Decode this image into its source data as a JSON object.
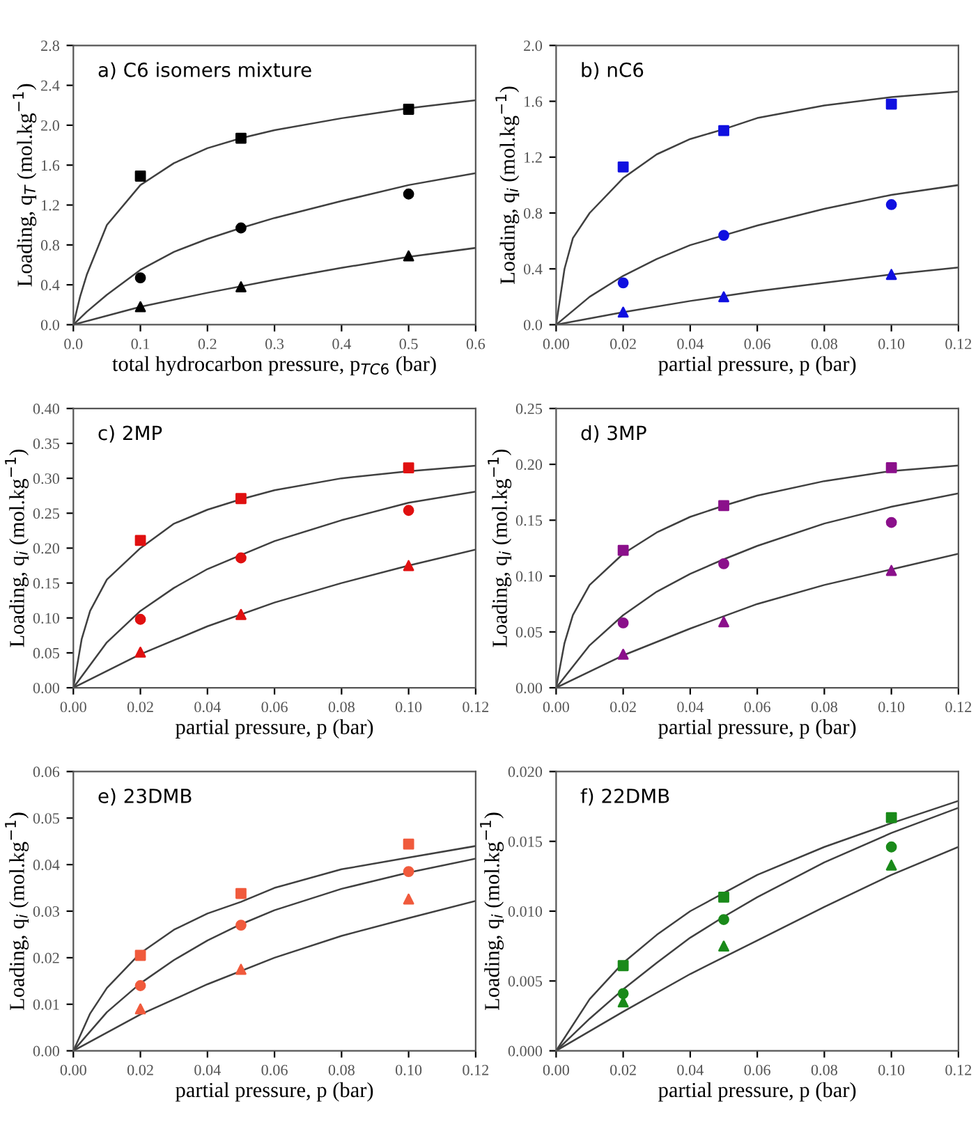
{
  "chart_data": [
    {
      "type": "scatter",
      "title": "a) C6 isomers mixture",
      "xlabel": "total hydrocarbon pressure, p$_{TC6}$ (bar)",
      "ylabel": "Loading, q$_{T}$ (mol.kg$^{−1}$)",
      "x": [
        0.1,
        0.25,
        0.5
      ],
      "xlim": [
        0.0,
        0.6
      ],
      "xticks": [
        {
          "value": 0,
          "label": "0.0"
        },
        0.1,
        0.2,
        0.3,
        0.4,
        0.5,
        0.6
      ],
      "ylim": [
        0.0,
        2.8
      ],
      "yticks": [
        {
          "value": 0,
          "label": "0.0"
        },
        0.4,
        0.8,
        1.2,
        1.6,
        {
          "value": 2,
          "label": "2.0"
        },
        2.4,
        2.8
      ],
      "grid": false,
      "legend": false,
      "series": [
        {
          "type": "scatter",
          "marker": "square",
          "color": "#000000",
          "values": [
            1.49,
            1.87,
            2.16
          ]
        },
        {
          "type": "scatter",
          "marker": "circle",
          "color": "#000000",
          "values": [
            0.47,
            0.97,
            1.31
          ]
        },
        {
          "type": "scatter",
          "marker": "triangle",
          "color": "#000000",
          "values": [
            0.18,
            0.38,
            0.69
          ]
        },
        {
          "type": "line",
          "marker": "none",
          "color": "#404040",
          "x": [
            0,
            0.01,
            0.02,
            0.05,
            0.1,
            0.15,
            0.2,
            0.25,
            0.3,
            0.4,
            0.5,
            0.6
          ],
          "values": [
            0,
            0.28,
            0.5,
            1.0,
            1.4,
            1.62,
            1.77,
            1.87,
            1.95,
            2.07,
            2.17,
            2.25
          ]
        },
        {
          "type": "line",
          "marker": "none",
          "color": "#404040",
          "x": [
            0,
            0.02,
            0.05,
            0.1,
            0.15,
            0.2,
            0.25,
            0.3,
            0.4,
            0.5,
            0.6
          ],
          "values": [
            0,
            0.13,
            0.3,
            0.55,
            0.73,
            0.86,
            0.97,
            1.07,
            1.24,
            1.4,
            1.52
          ]
        },
        {
          "type": "line",
          "marker": "none",
          "color": "#404040",
          "x": [
            0,
            0.1,
            0.2,
            0.3,
            0.4,
            0.5,
            0.6
          ],
          "values": [
            0,
            0.18,
            0.32,
            0.45,
            0.57,
            0.68,
            0.77
          ]
        }
      ]
    },
    {
      "type": "scatter",
      "title": "b) nC6",
      "xlabel": "partial pressure, p (bar)",
      "ylabel": "Loading, q$_{i}$ (mol.kg$^{−1}$)",
      "x": [
        0.02,
        0.05,
        0.1
      ],
      "xlim": [
        0.0,
        0.12
      ],
      "xticks": [
        {
          "value": 0,
          "label": "0.00"
        },
        {
          "value": 0.02,
          "label": "0.02"
        },
        {
          "value": 0.04,
          "label": "0.04"
        },
        {
          "value": 0.06,
          "label": "0.06"
        },
        {
          "value": 0.08,
          "label": "0.08"
        },
        {
          "value": 0.1,
          "label": "0.10"
        },
        {
          "value": 0.12,
          "label": "0.12"
        }
      ],
      "ylim": [
        0.0,
        2.0
      ],
      "yticks": [
        {
          "value": 0,
          "label": "0.0"
        },
        0.4,
        0.8,
        1.2,
        1.6,
        {
          "value": 2,
          "label": "2.0"
        }
      ],
      "grid": false,
      "legend": false,
      "series": [
        {
          "type": "scatter",
          "marker": "square",
          "color": "#1010e0",
          "values": [
            1.13,
            1.39,
            1.58
          ]
        },
        {
          "type": "scatter",
          "marker": "circle",
          "color": "#1010e0",
          "values": [
            0.3,
            0.64,
            0.86
          ]
        },
        {
          "type": "scatter",
          "marker": "triangle",
          "color": "#1010e0",
          "values": [
            0.09,
            0.2,
            0.36
          ]
        },
        {
          "type": "line",
          "marker": "none",
          "color": "#404040",
          "x": [
            0,
            0.0025,
            0.005,
            0.01,
            0.02,
            0.03,
            0.04,
            0.05,
            0.06,
            0.08,
            0.1,
            0.12
          ],
          "values": [
            0,
            0.4,
            0.62,
            0.8,
            1.05,
            1.22,
            1.33,
            1.4,
            1.48,
            1.57,
            1.63,
            1.67
          ]
        },
        {
          "type": "line",
          "marker": "none",
          "color": "#404040",
          "x": [
            0,
            0.01,
            0.02,
            0.03,
            0.04,
            0.05,
            0.06,
            0.08,
            0.1,
            0.12
          ],
          "values": [
            0,
            0.2,
            0.35,
            0.47,
            0.57,
            0.64,
            0.71,
            0.83,
            0.93,
            1.0
          ]
        },
        {
          "type": "line",
          "marker": "none",
          "color": "#404040",
          "x": [
            0,
            0.02,
            0.04,
            0.06,
            0.08,
            0.1,
            0.12
          ],
          "values": [
            0,
            0.09,
            0.17,
            0.24,
            0.3,
            0.36,
            0.41
          ]
        }
      ]
    },
    {
      "type": "scatter",
      "title": "c) 2MP",
      "xlabel": "partial pressure, p (bar)",
      "ylabel": "Loading, q$_{i}$ (mol.kg$^{−1}$)",
      "x": [
        0.02,
        0.05,
        0.1
      ],
      "xlim": [
        0.0,
        0.12
      ],
      "xticks": [
        {
          "value": 0,
          "label": "0.00"
        },
        {
          "value": 0.02,
          "label": "0.02"
        },
        {
          "value": 0.04,
          "label": "0.04"
        },
        {
          "value": 0.06,
          "label": "0.06"
        },
        {
          "value": 0.08,
          "label": "0.08"
        },
        {
          "value": 0.1,
          "label": "0.10"
        },
        {
          "value": 0.12,
          "label": "0.12"
        }
      ],
      "ylim": [
        0.0,
        0.4
      ],
      "yticks": [
        {
          "value": 0,
          "label": "0.00"
        },
        {
          "value": 0.05,
          "label": "0.05"
        },
        {
          "value": 0.1,
          "label": "0.10"
        },
        {
          "value": 0.15,
          "label": "0.15"
        },
        {
          "value": 0.2,
          "label": "0.20"
        },
        {
          "value": 0.25,
          "label": "0.25"
        },
        {
          "value": 0.3,
          "label": "0.30"
        },
        {
          "value": 0.35,
          "label": "0.35"
        },
        {
          "value": 0.4,
          "label": "0.40"
        }
      ],
      "grid": false,
      "legend": false,
      "series": [
        {
          "type": "scatter",
          "marker": "square",
          "color": "#e01010",
          "values": [
            0.211,
            0.271,
            0.315
          ]
        },
        {
          "type": "scatter",
          "marker": "circle",
          "color": "#e01010",
          "values": [
            0.098,
            0.186,
            0.254
          ]
        },
        {
          "type": "scatter",
          "marker": "triangle",
          "color": "#e01010",
          "values": [
            0.051,
            0.105,
            0.175
          ]
        },
        {
          "type": "line",
          "marker": "none",
          "color": "#404040",
          "x": [
            0,
            0.0025,
            0.005,
            0.01,
            0.02,
            0.03,
            0.04,
            0.05,
            0.06,
            0.08,
            0.1,
            0.12
          ],
          "values": [
            0,
            0.07,
            0.11,
            0.155,
            0.2,
            0.235,
            0.255,
            0.27,
            0.283,
            0.3,
            0.31,
            0.318
          ]
        },
        {
          "type": "line",
          "marker": "none",
          "color": "#404040",
          "x": [
            0,
            0.01,
            0.02,
            0.03,
            0.04,
            0.05,
            0.06,
            0.08,
            0.1,
            0.12
          ],
          "values": [
            0,
            0.065,
            0.11,
            0.143,
            0.17,
            0.19,
            0.21,
            0.24,
            0.265,
            0.281
          ]
        },
        {
          "type": "line",
          "marker": "none",
          "color": "#404040",
          "x": [
            0,
            0.02,
            0.04,
            0.06,
            0.08,
            0.1,
            0.12
          ],
          "values": [
            0,
            0.048,
            0.088,
            0.122,
            0.15,
            0.175,
            0.198
          ]
        }
      ]
    },
    {
      "type": "scatter",
      "title": "d) 3MP",
      "xlabel": "partial pressure, p (bar)",
      "ylabel": "Loading, q$_{i}$ (mol.kg$^{−1}$)",
      "x": [
        0.02,
        0.05,
        0.1
      ],
      "xlim": [
        0.0,
        0.12
      ],
      "xticks": [
        {
          "value": 0,
          "label": "0.00"
        },
        {
          "value": 0.02,
          "label": "0.02"
        },
        {
          "value": 0.04,
          "label": "0.04"
        },
        {
          "value": 0.06,
          "label": "0.06"
        },
        {
          "value": 0.08,
          "label": "0.08"
        },
        {
          "value": 0.1,
          "label": "0.10"
        },
        {
          "value": 0.12,
          "label": "0.12"
        }
      ],
      "ylim": [
        0.0,
        0.25
      ],
      "yticks": [
        {
          "value": 0,
          "label": "0.00"
        },
        {
          "value": 0.05,
          "label": "0.05"
        },
        {
          "value": 0.1,
          "label": "0.10"
        },
        {
          "value": 0.15,
          "label": "0.15"
        },
        {
          "value": 0.2,
          "label": "0.20"
        },
        {
          "value": 0.25,
          "label": "0.25"
        }
      ],
      "grid": false,
      "legend": false,
      "series": [
        {
          "type": "scatter",
          "marker": "square",
          "color": "#8b108b",
          "values": [
            0.123,
            0.163,
            0.197
          ]
        },
        {
          "type": "scatter",
          "marker": "circle",
          "color": "#8b108b",
          "values": [
            0.058,
            0.111,
            0.148
          ]
        },
        {
          "type": "scatter",
          "marker": "triangle",
          "color": "#8b108b",
          "values": [
            0.03,
            0.059,
            0.105
          ]
        },
        {
          "type": "line",
          "marker": "none",
          "color": "#404040",
          "x": [
            0,
            0.0025,
            0.005,
            0.01,
            0.02,
            0.03,
            0.04,
            0.05,
            0.06,
            0.08,
            0.1,
            0.12
          ],
          "values": [
            0,
            0.04,
            0.065,
            0.092,
            0.12,
            0.139,
            0.153,
            0.163,
            0.172,
            0.185,
            0.194,
            0.199
          ]
        },
        {
          "type": "line",
          "marker": "none",
          "color": "#404040",
          "x": [
            0,
            0.01,
            0.02,
            0.03,
            0.04,
            0.05,
            0.06,
            0.08,
            0.1,
            0.12
          ],
          "values": [
            0,
            0.038,
            0.065,
            0.086,
            0.102,
            0.115,
            0.127,
            0.147,
            0.162,
            0.174
          ]
        },
        {
          "type": "line",
          "marker": "none",
          "color": "#404040",
          "x": [
            0,
            0.02,
            0.04,
            0.06,
            0.08,
            0.1,
            0.12
          ],
          "values": [
            0,
            0.029,
            0.053,
            0.075,
            0.092,
            0.106,
            0.12
          ]
        }
      ]
    },
    {
      "type": "scatter",
      "title": "e) 23DMB",
      "xlabel": "partial pressure, p (bar)",
      "ylabel": "Loading, q$_{i}$ (mol.kg$^{−1}$)",
      "x": [
        0.02,
        0.05,
        0.1
      ],
      "xlim": [
        0.0,
        0.12
      ],
      "xticks": [
        {
          "value": 0,
          "label": "0.00"
        },
        {
          "value": 0.02,
          "label": "0.02"
        },
        {
          "value": 0.04,
          "label": "0.04"
        },
        {
          "value": 0.06,
          "label": "0.06"
        },
        {
          "value": 0.08,
          "label": "0.08"
        },
        {
          "value": 0.1,
          "label": "0.10"
        },
        {
          "value": 0.12,
          "label": "0.12"
        }
      ],
      "ylim": [
        0.0,
        0.06
      ],
      "yticks": [
        {
          "value": 0,
          "label": "0.00"
        },
        {
          "value": 0.01,
          "label": "0.01"
        },
        {
          "value": 0.02,
          "label": "0.02"
        },
        {
          "value": 0.03,
          "label": "0.03"
        },
        {
          "value": 0.04,
          "label": "0.04"
        },
        {
          "value": 0.05,
          "label": "0.05"
        },
        {
          "value": 0.06,
          "label": "0.06"
        }
      ],
      "grid": false,
      "legend": false,
      "series": [
        {
          "type": "scatter",
          "marker": "square",
          "color": "#f05a3c",
          "values": [
            0.0205,
            0.0338,
            0.0444
          ]
        },
        {
          "type": "scatter",
          "marker": "circle",
          "color": "#f05a3c",
          "values": [
            0.014,
            0.027,
            0.0385
          ]
        },
        {
          "type": "scatter",
          "marker": "triangle",
          "color": "#f05a3c",
          "values": [
            0.009,
            0.0175,
            0.0326
          ]
        },
        {
          "type": "line",
          "marker": "none",
          "color": "#404040",
          "x": [
            0,
            0.005,
            0.01,
            0.02,
            0.03,
            0.04,
            0.05,
            0.06,
            0.08,
            0.1,
            0.12
          ],
          "values": [
            0,
            0.008,
            0.0135,
            0.021,
            0.026,
            0.0295,
            0.032,
            0.035,
            0.039,
            0.0415,
            0.044
          ]
        },
        {
          "type": "line",
          "marker": "none",
          "color": "#404040",
          "x": [
            0,
            0.01,
            0.02,
            0.03,
            0.04,
            0.05,
            0.06,
            0.08,
            0.1,
            0.12
          ],
          "values": [
            0,
            0.0083,
            0.0145,
            0.0195,
            0.0237,
            0.0272,
            0.0302,
            0.0348,
            0.0383,
            0.0413
          ]
        },
        {
          "type": "line",
          "marker": "none",
          "color": "#404040",
          "x": [
            0,
            0.02,
            0.04,
            0.06,
            0.08,
            0.1,
            0.12
          ],
          "values": [
            0,
            0.0078,
            0.0143,
            0.02,
            0.0247,
            0.0285,
            0.0322
          ]
        }
      ]
    },
    {
      "type": "scatter",
      "title": "f) 22DMB",
      "xlabel": "partial pressure, p (bar)",
      "ylabel": "Loading, q$_{i}$ (mol.kg$^{−1}$)",
      "x": [
        0.02,
        0.05,
        0.1
      ],
      "xlim": [
        0.0,
        0.12
      ],
      "xticks": [
        {
          "value": 0,
          "label": "0.00"
        },
        {
          "value": 0.02,
          "label": "0.02"
        },
        {
          "value": 0.04,
          "label": "0.04"
        },
        {
          "value": 0.06,
          "label": "0.06"
        },
        {
          "value": 0.08,
          "label": "0.08"
        },
        {
          "value": 0.1,
          "label": "0.10"
        },
        {
          "value": 0.12,
          "label": "0.12"
        }
      ],
      "ylim": [
        0.0,
        0.02
      ],
      "yticks": [
        {
          "value": 0,
          "label": "0.000"
        },
        {
          "value": 0.005,
          "label": "0.005"
        },
        {
          "value": 0.01,
          "label": "0.010"
        },
        {
          "value": 0.015,
          "label": "0.015"
        },
        {
          "value": 0.02,
          "label": "0.020"
        }
      ],
      "grid": false,
      "legend": false,
      "series": [
        {
          "type": "scatter",
          "marker": "square",
          "color": "#1a8a1a",
          "values": [
            0.0061,
            0.011,
            0.0167
          ]
        },
        {
          "type": "scatter",
          "marker": "circle",
          "color": "#1a8a1a",
          "values": [
            0.0041,
            0.0094,
            0.0146
          ]
        },
        {
          "type": "scatter",
          "marker": "triangle",
          "color": "#1a8a1a",
          "values": [
            0.0035,
            0.0075,
            0.0133
          ]
        },
        {
          "type": "line",
          "marker": "none",
          "color": "#404040",
          "x": [
            0,
            0.01,
            0.02,
            0.03,
            0.04,
            0.05,
            0.06,
            0.08,
            0.1,
            0.12
          ],
          "values": [
            0,
            0.0037,
            0.0063,
            0.0083,
            0.01,
            0.0113,
            0.0126,
            0.0146,
            0.0163,
            0.0179
          ]
        },
        {
          "type": "line",
          "marker": "none",
          "color": "#404040",
          "x": [
            0,
            0.01,
            0.02,
            0.03,
            0.04,
            0.05,
            0.06,
            0.08,
            0.1,
            0.12
          ],
          "values": [
            0,
            0.0023,
            0.0044,
            0.0063,
            0.0081,
            0.0096,
            0.011,
            0.0135,
            0.0156,
            0.0174
          ]
        },
        {
          "type": "line",
          "marker": "none",
          "color": "#404040",
          "x": [
            0,
            0.02,
            0.04,
            0.06,
            0.08,
            0.1,
            0.12
          ],
          "values": [
            0,
            0.0028,
            0.0055,
            0.0079,
            0.0103,
            0.0126,
            0.0146
          ]
        }
      ]
    }
  ]
}
